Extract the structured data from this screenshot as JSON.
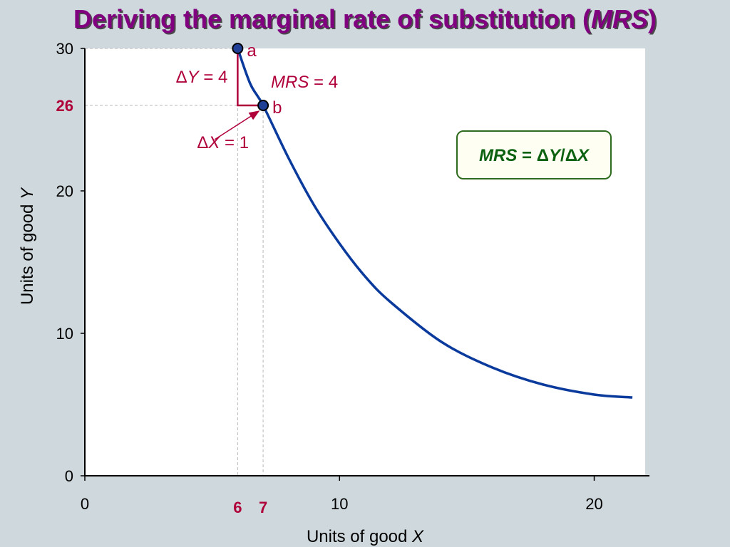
{
  "title": {
    "prefix": "Deriving the marginal rate of substitution (",
    "italic": "MRS",
    "suffix": ")"
  },
  "colors": {
    "background": "#cfd9dd",
    "title": "#800080",
    "curve": "#0a3a9c",
    "annotation": "#b0003a",
    "point_fill": "#1e3f95",
    "formula_border": "#2e6b1f",
    "formula_text": "#0b6110"
  },
  "chart_data": {
    "type": "line",
    "xlabel": "Units of good",
    "xlabel_var": "X",
    "ylabel": "Units of good",
    "ylabel_var": "Y",
    "xlim": [
      0,
      22
    ],
    "ylim": [
      0,
      30
    ],
    "x_ticks": [
      {
        "value": 0,
        "label": "0"
      },
      {
        "value": 10,
        "label": "10"
      },
      {
        "value": 20,
        "label": "20"
      }
    ],
    "y_ticks": [
      {
        "value": 0,
        "label": "0"
      },
      {
        "value": 10,
        "label": "10"
      },
      {
        "value": 20,
        "label": "20"
      },
      {
        "value": 30,
        "label": "30"
      }
    ],
    "highlight_x_ticks": [
      {
        "value": 6,
        "label": "6"
      },
      {
        "value": 7,
        "label": "7"
      }
    ],
    "highlight_y_ticks": [
      {
        "value": 26,
        "label": "26"
      }
    ],
    "series": [
      {
        "x": [
          6,
          6.5,
          7,
          8,
          9,
          10,
          11,
          12,
          14,
          16,
          18,
          20,
          21.5
        ],
        "y": [
          30,
          27.5,
          26,
          22.3,
          19.0,
          16.3,
          14.0,
          12.2,
          9.4,
          7.6,
          6.4,
          5.7,
          5.5
        ]
      }
    ],
    "points": [
      {
        "label": "a",
        "x": 6,
        "y": 30
      },
      {
        "label": "b",
        "x": 7,
        "y": 26
      }
    ],
    "annotations": {
      "delta_y": {
        "symbol": "Δ",
        "var": "Y",
        "rest": " = 4"
      },
      "delta_x": {
        "symbol": "Δ",
        "var": "X",
        "rest": " = 1"
      },
      "mrs": {
        "var": "MRS",
        "rest": " = 4"
      }
    },
    "formula": {
      "lhs": "MRS",
      "eq": " = ",
      "delta1": "Δ",
      "num": "Y",
      "slash": "/",
      "delta2": "Δ",
      "den": "X"
    }
  }
}
